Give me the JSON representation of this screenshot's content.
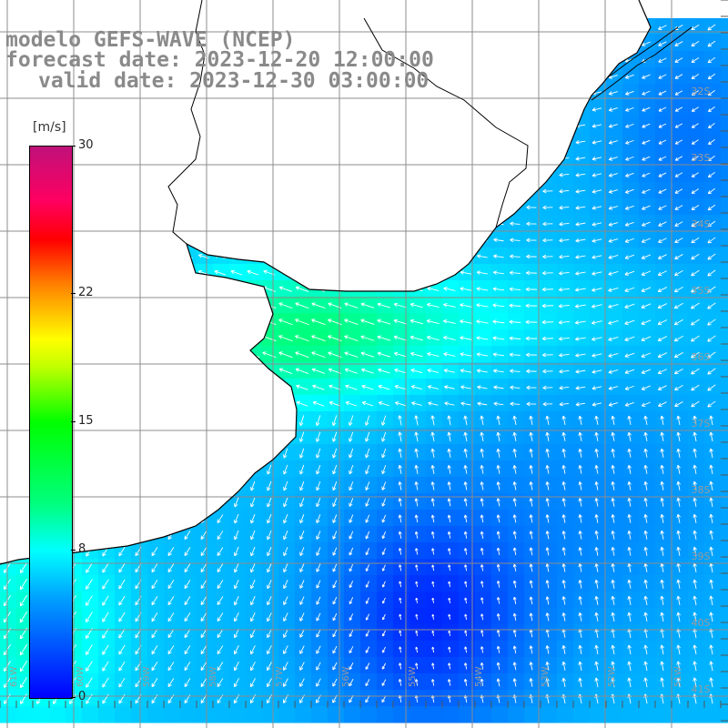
{
  "title": {
    "line1": "modelo GEFS-WAVE (NCEP)",
    "line2": "forecast date: 2023-12-20 12:00:00",
    "line3": "valid date: 2023-12-30 03:00:00"
  },
  "colorbar": {
    "unit": "[m/s]",
    "ticks": [
      "30",
      "22",
      "15",
      "8",
      "0"
    ],
    "tick_values": [
      30,
      22,
      15,
      8,
      0
    ],
    "vmin": 0,
    "vmax": 30
  },
  "map": {
    "lat_labels": [
      "32S",
      "33S",
      "34S",
      "35S",
      "36S",
      "37S",
      "38S",
      "39S",
      "40S",
      "41S"
    ],
    "lon_labels": [
      "61W",
      "60W",
      "59W",
      "58W",
      "57W",
      "56W",
      "55W",
      "54W",
      "53W",
      "52W",
      "51W"
    ],
    "colors": {
      "land": "#ffffff",
      "coast": "#000000",
      "grid": "#8c8c8c",
      "arrow": "#ffffff"
    }
  }
}
